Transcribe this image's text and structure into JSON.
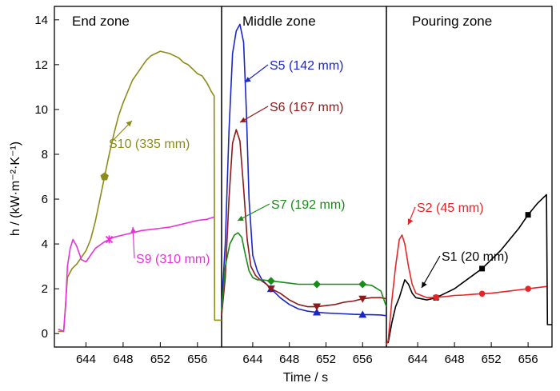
{
  "chart_data": {
    "type": "line",
    "ylabel": "h / (kW·m⁻²·K⁻¹)",
    "xlabel": "Time / s",
    "ylim": [
      -0.6,
      14.6
    ],
    "yticks": [
      0,
      2,
      4,
      6,
      8,
      10,
      12,
      14
    ],
    "xlim": [
      640.6,
      658.6
    ],
    "xticks": [
      644,
      648,
      652,
      656
    ],
    "panels": [
      {
        "title": "End zone",
        "series": [
          {
            "name": "S10 (335 mm)",
            "color": "#8c8c1a",
            "marker": "pentagon",
            "x": [
              641,
              641.6,
              642,
              642.5,
              643,
              643.5,
              644,
              644.5,
              645,
              645.5,
              646,
              646.5,
              647,
              647.5,
              648,
              648.5,
              649,
              649.5,
              650,
              650.5,
              651,
              651.5,
              652,
              652.5,
              653,
              653.5,
              654,
              654.5,
              655,
              655.5,
              656,
              656.5,
              657,
              657.5,
              657.8,
              657.85,
              658.6
            ],
            "y": [
              0.1,
              0.1,
              2.5,
              2.9,
              3.1,
              3.4,
              3.7,
              4.2,
              5.0,
              6.0,
              7.0,
              8.0,
              8.9,
              9.7,
              10.3,
              10.8,
              11.3,
              11.6,
              11.9,
              12.2,
              12.4,
              12.5,
              12.6,
              12.55,
              12.5,
              12.4,
              12.3,
              12.1,
              12.0,
              11.8,
              11.6,
              11.5,
              11.2,
              10.8,
              10.6,
              0.6,
              0.6
            ],
            "markers_x": [
              646
            ],
            "label": "S10 (335 mm)"
          },
          {
            "name": "S9 (310 mm)",
            "color": "#e633d9",
            "marker": "star",
            "x": [
              641,
              641.6,
              641.8,
              642,
              642.3,
              642.6,
              643,
              643.5,
              644,
              644.5,
              645,
              646,
              647,
              648,
              649,
              650,
              651,
              652,
              653,
              654,
              655,
              656,
              657,
              657.8
            ],
            "y": [
              0.2,
              0.1,
              1.2,
              3.0,
              3.8,
              4.2,
              3.9,
              3.3,
              3.2,
              3.5,
              3.8,
              4.1,
              4.3,
              4.4,
              4.5,
              4.6,
              4.65,
              4.7,
              4.75,
              4.85,
              4.95,
              5.05,
              5.1,
              5.2
            ],
            "markers_x": [
              646.5
            ],
            "label": "S9 (310 mm)"
          }
        ]
      },
      {
        "title": "Middle zone",
        "series": [
          {
            "name": "S5 (142 mm)",
            "color": "#1a26c7",
            "marker": "triangle",
            "x": [
              640.6,
              641,
              641.4,
              641.8,
              642.2,
              642.6,
              643,
              643.3,
              643.6,
              644,
              644.5,
              645,
              646,
              647,
              648,
              649,
              650,
              651,
              652,
              653,
              654,
              655,
              656,
              657,
              658,
              658.6
            ],
            "y": [
              1.2,
              4.0,
              9.0,
              12.5,
              13.5,
              13.8,
              13.0,
              10.0,
              6.0,
              3.5,
              2.8,
              2.4,
              2.0,
              1.6,
              1.3,
              1.1,
              1.0,
              0.95,
              0.92,
              0.9,
              0.88,
              0.86,
              0.85,
              0.84,
              0.83,
              0.8
            ],
            "markers_x": [
              646,
              651,
              656
            ],
            "label": "S5 (142 mm)"
          },
          {
            "name": "S6 (167 mm)",
            "color": "#8c1a1a",
            "marker": "triangle-down",
            "x": [
              640.6,
              641,
              641.4,
              641.8,
              642.2,
              642.6,
              643,
              643.4,
              643.8,
              644.3,
              644.8,
              645.5,
              646,
              647,
              648,
              649,
              650,
              651,
              652,
              653,
              654,
              655,
              656,
              657,
              658,
              658.6
            ],
            "y": [
              0.8,
              2.5,
              6.0,
              8.5,
              9.1,
              8.6,
              6.5,
              4.2,
              3.0,
              2.6,
              2.4,
              2.2,
              2.0,
              1.8,
              1.5,
              1.3,
              1.2,
              1.2,
              1.25,
              1.3,
              1.4,
              1.45,
              1.55,
              1.6,
              1.6,
              1.55
            ],
            "markers_x": [
              646,
              651,
              656
            ],
            "label": "S6 (167 mm)"
          },
          {
            "name": "S7 (192 mm)",
            "color": "#1a8c1a",
            "marker": "diamond",
            "x": [
              640.6,
              641,
              641.5,
              642,
              642.4,
              642.8,
              643.2,
              643.6,
              644,
              644.5,
              645,
              646,
              647,
              648,
              649,
              650,
              651,
              652,
              653,
              654,
              655,
              656,
              657,
              658,
              658.6
            ],
            "y": [
              1.0,
              3.0,
              4.0,
              4.4,
              4.5,
              4.3,
              3.5,
              2.8,
              2.5,
              2.4,
              2.4,
              2.35,
              2.3,
              2.25,
              2.2,
              2.2,
              2.2,
              2.2,
              2.2,
              2.2,
              2.2,
              2.2,
              2.15,
              1.9,
              1.2
            ],
            "markers_x": [
              646,
              651,
              656
            ],
            "label": "S7 (192 mm)"
          }
        ]
      },
      {
        "title": "Pouring zone",
        "series": [
          {
            "name": "S1 (20 mm)",
            "color": "#000000",
            "marker": "square",
            "x": [
              640.6,
              640.8,
              641.2,
              641.6,
              642,
              642.3,
              642.6,
              643,
              643.4,
              643.8,
              644.4,
              645,
              646,
              647,
              648,
              649,
              650,
              651,
              652,
              653,
              654,
              655,
              656,
              657,
              658,
              658.1,
              658.6
            ],
            "y": [
              -0.4,
              -0.4,
              0.5,
              1.2,
              1.6,
              2.0,
              2.4,
              2.2,
              1.8,
              1.6,
              1.55,
              1.5,
              1.6,
              1.8,
              2.0,
              2.3,
              2.6,
              2.9,
              3.3,
              3.7,
              4.2,
              4.7,
              5.3,
              5.8,
              6.2,
              0.4,
              0.4
            ],
            "markers_x": [
              646,
              651,
              656
            ],
            "label": "S1 (20 mm)"
          },
          {
            "name": "S2 (45 mm)",
            "color": "#e62626",
            "marker": "circle",
            "x": [
              640.6,
              640.8,
              641.2,
              641.6,
              642,
              642.3,
              642.6,
              643,
              643.4,
              643.8,
              644.4,
              645,
              646,
              647,
              648,
              649,
              650,
              651,
              652,
              653,
              654,
              655,
              656,
              657,
              658
            ],
            "y": [
              -0.5,
              -0.3,
              1.5,
              3.0,
              4.2,
              4.4,
              4.0,
              3.0,
              2.2,
              1.8,
              1.7,
              1.6,
              1.62,
              1.65,
              1.7,
              1.72,
              1.75,
              1.78,
              1.8,
              1.85,
              1.9,
              1.95,
              2.0,
              2.05,
              2.1
            ],
            "markers_x": [
              646,
              651,
              656
            ],
            "label": "S2 (45 mm)"
          }
        ]
      }
    ]
  }
}
